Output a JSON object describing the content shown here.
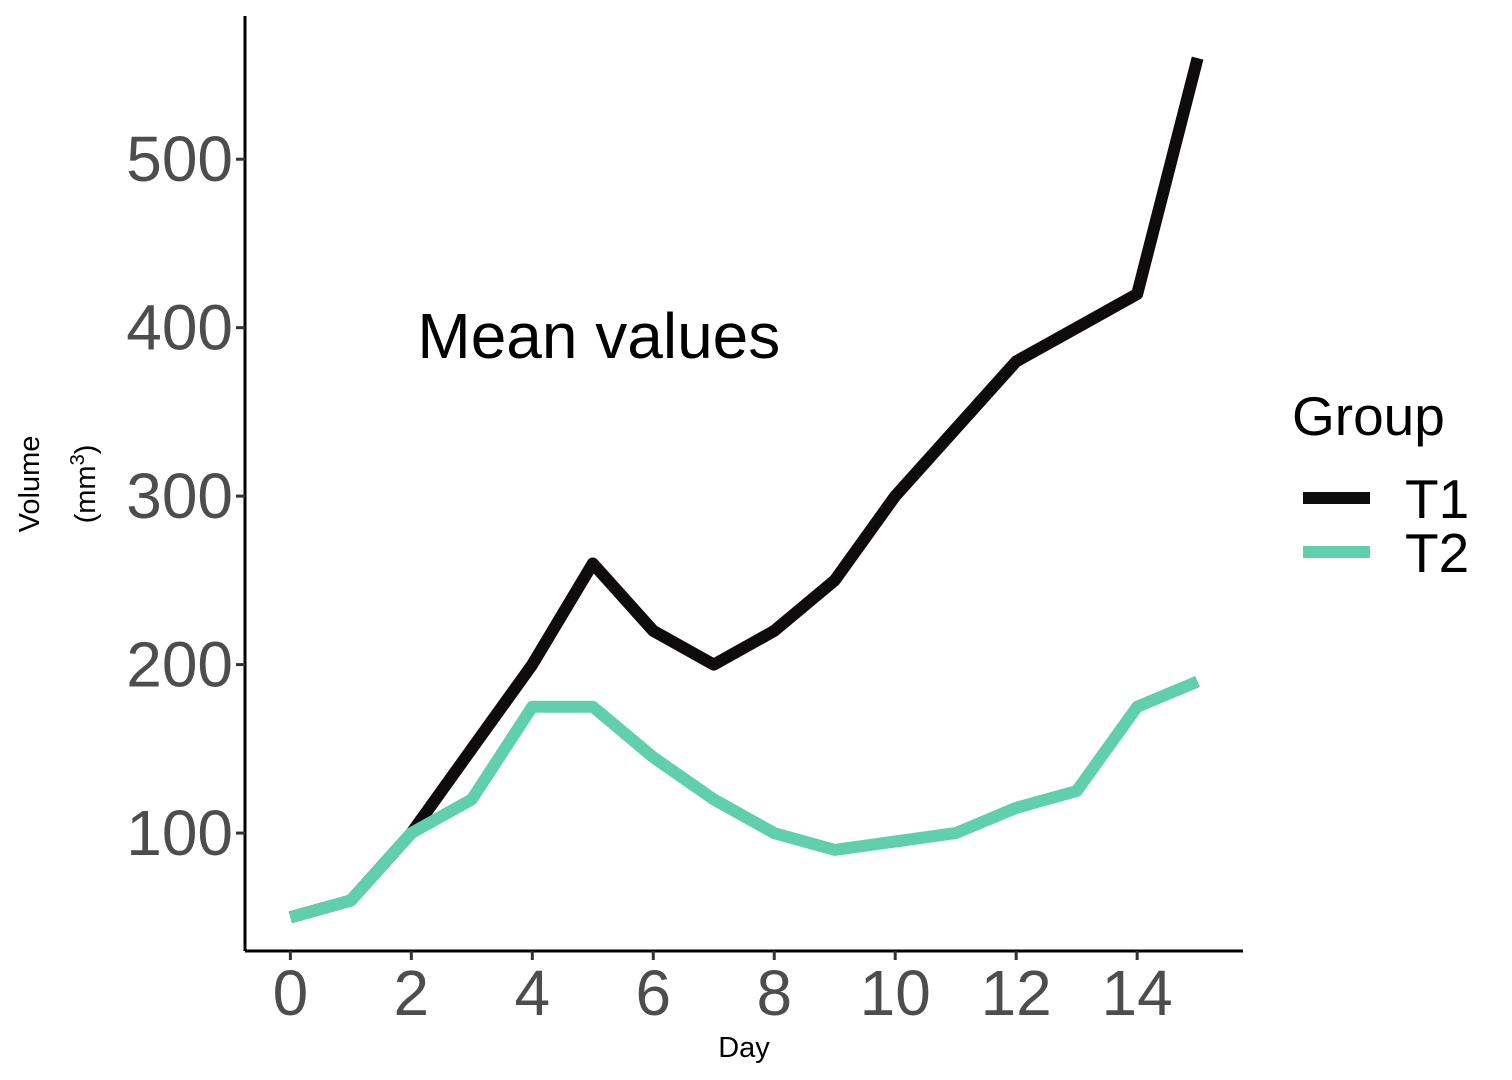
{
  "chart_data": {
    "type": "line",
    "xlabel": "Day",
    "ylabel_line1": "Volume",
    "ylabel_line2_prefix": "(mm",
    "ylabel_sup": "3",
    "ylabel_line2_suffix": ")",
    "annotation": "Mean values",
    "annotation_pos": {
      "x": 5.1,
      "y": 395
    },
    "xlim": [
      -0.75,
      15.75
    ],
    "ylim": [
      30,
      585
    ],
    "xticks": [
      0,
      2,
      4,
      6,
      8,
      10,
      12,
      14
    ],
    "yticks": [
      100,
      200,
      300,
      400,
      500
    ],
    "grid": false,
    "legend": {
      "title": "Group",
      "placement": "right"
    },
    "x": [
      0,
      1,
      2,
      3,
      4,
      5,
      6,
      7,
      8,
      9,
      10,
      11,
      12,
      13,
      14,
      15
    ],
    "series": [
      {
        "name": "T1",
        "color": "#0d0b0b",
        "values": [
          50,
          60,
          100,
          150,
          200,
          260,
          220,
          200,
          220,
          250,
          300,
          340,
          380,
          400,
          420,
          560
        ]
      },
      {
        "name": "T2",
        "color": "#5fcfac",
        "values": [
          50,
          60,
          100,
          120,
          175,
          175,
          145,
          120,
          100,
          90,
          95,
          100,
          115,
          125,
          175,
          190
        ]
      }
    ]
  }
}
